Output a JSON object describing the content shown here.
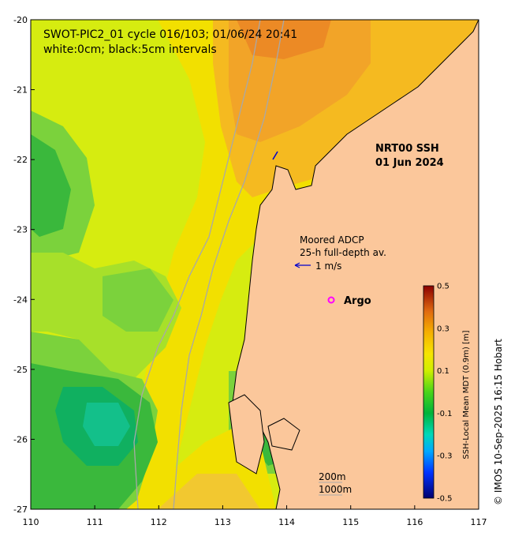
{
  "title_line1": "SWOT-PIC2_01 cycle 016/103; 01/06/24 20:41",
  "title_line2": "white:0cm; black:5cm intervals",
  "product": "NRT00 SSH",
  "product_date": "01 Jun 2024",
  "adcp_line1": "Moored ADCP",
  "adcp_line2": "25-h full-depth av.",
  "adcp_scale": "1 m/s",
  "argo_label": "Argo",
  "bathy_200": "200m",
  "bathy_1000": "1000m",
  "credit": "© IMOS 10-Sep-2025 16:15 Hobart",
  "colorbar": {
    "title": "SSH-Local Mean MDT (0.9m) [m]",
    "ticks": [
      "0.5",
      "0.3",
      "0.1",
      "-0.1",
      "-0.3",
      "-0.5"
    ],
    "range": [
      -0.5,
      0.5
    ]
  },
  "axes": {
    "lon_ticks": [
      "110",
      "111",
      "112",
      "113",
      "114",
      "115",
      "116",
      "117"
    ],
    "lat_ticks": [
      "-20",
      "-21",
      "-22",
      "-23",
      "-24",
      "-25",
      "-26",
      "-27"
    ],
    "lon_range": [
      110,
      117
    ],
    "lat_range": [
      -27,
      -20
    ]
  },
  "colors": {
    "land": "#fbc79b",
    "coast": "#000000",
    "bathy": "#a8a8a8",
    "argo": "#ff00ff",
    "adcp_arrow": "#0000cc"
  }
}
